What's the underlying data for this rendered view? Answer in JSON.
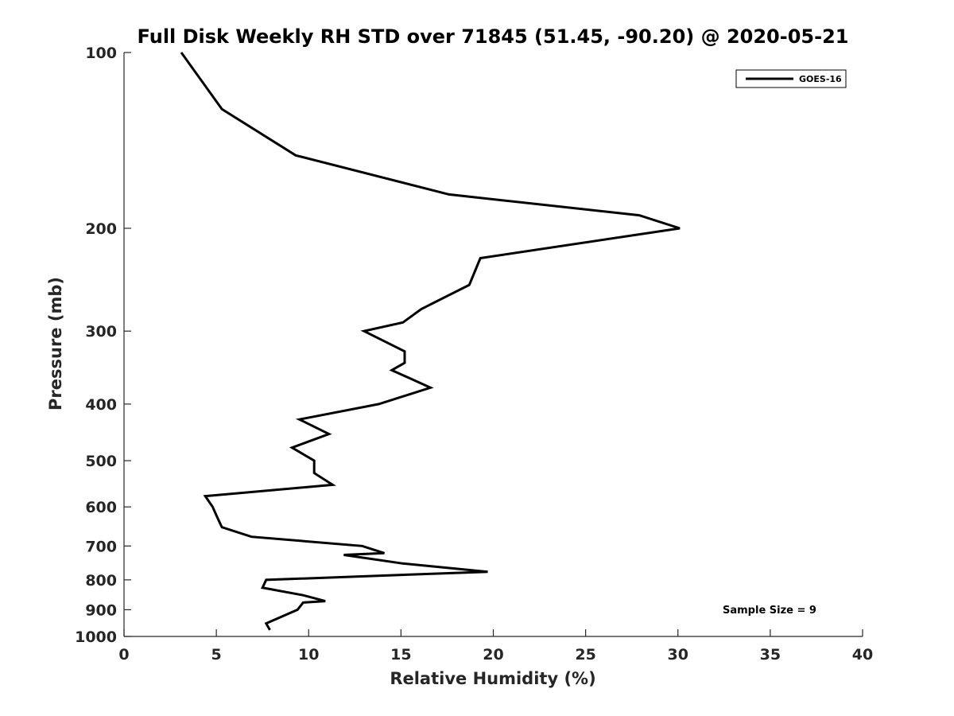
{
  "chart_data": {
    "type": "line",
    "title": "Full Disk Weekly RH STD over 71845 (51.45, -90.20) @ 2020-05-21",
    "xlabel": "Relative Humidity (%)",
    "ylabel": "Pressure (mb)",
    "xlim": [
      0,
      40
    ],
    "ylim": [
      100,
      1000
    ],
    "y_scale": "log",
    "y_reversed": true,
    "x_ticks": [
      0,
      5,
      10,
      15,
      20,
      25,
      30,
      35,
      40
    ],
    "y_ticks": [
      100,
      200,
      300,
      400,
      500,
      600,
      700,
      800,
      900,
      1000
    ],
    "grid": false,
    "legend_position": "top-right",
    "annotation": "Sample Size = 9",
    "colors": {
      "series": "#000000",
      "axis": "#262626"
    },
    "series": [
      {
        "name": "GOES-16",
        "points": [
          [
            3.1,
            100
          ],
          [
            5.3,
            125
          ],
          [
            9.3,
            150
          ],
          [
            17.6,
            175
          ],
          [
            27.9,
            190
          ],
          [
            30.1,
            200
          ],
          [
            19.3,
            225
          ],
          [
            18.7,
            250
          ],
          [
            16.1,
            275
          ],
          [
            15.1,
            290
          ],
          [
            13.0,
            300
          ],
          [
            15.2,
            325
          ],
          [
            15.2,
            340
          ],
          [
            14.5,
            350
          ],
          [
            16.6,
            375
          ],
          [
            13.8,
            400
          ],
          [
            9.5,
            425
          ],
          [
            11.1,
            450
          ],
          [
            9.1,
            475
          ],
          [
            10.3,
            500
          ],
          [
            10.3,
            525
          ],
          [
            11.3,
            550
          ],
          [
            4.4,
            575
          ],
          [
            4.8,
            600
          ],
          [
            5.0,
            620
          ],
          [
            5.3,
            650
          ],
          [
            6.9,
            675
          ],
          [
            12.9,
            700
          ],
          [
            14.1,
            720
          ],
          [
            11.9,
            725
          ],
          [
            15.1,
            750
          ],
          [
            19.7,
            775
          ],
          [
            7.7,
            800
          ],
          [
            7.5,
            825
          ],
          [
            9.7,
            850
          ],
          [
            10.9,
            870
          ],
          [
            9.7,
            875
          ],
          [
            9.4,
            900
          ],
          [
            7.7,
            950
          ],
          [
            7.9,
            975
          ]
        ]
      }
    ]
  }
}
